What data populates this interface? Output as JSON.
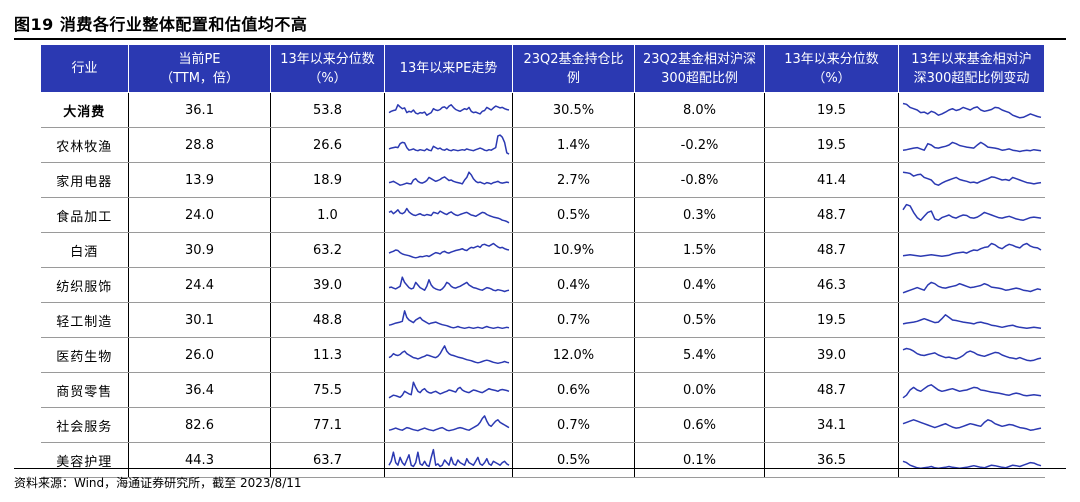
{
  "title": "图19 消费各行业整体配置和估值均不高",
  "source": "资料来源：Wind，海通证券研究所，截至 2023/8/11",
  "headers": {
    "industry": "行业",
    "pe_line1": "当前PE",
    "pe_line2": "（TTM，倍）",
    "pe_pct_line1": "13年以来分位数",
    "pe_pct_line2": "（%）",
    "pe_trend": "13年以来PE走势",
    "hold_line1": "23Q2基金持仓比",
    "hold_line2": "例",
    "rel_line1": "23Q2基金相对沪深",
    "rel_line2": "300超配比例",
    "rel_pct_line1": "13年以来分位数",
    "rel_pct_line2": "（%）",
    "rel_trend_line1": "13年以来基金相对沪",
    "rel_trend_line2": "深300超配比例变动"
  },
  "colors": {
    "header_bg": "#2b39b2",
    "sparkline": "#2b39b2"
  },
  "chart_data": {
    "type": "table",
    "columns": [
      "行业",
      "当前PE（TTM，倍）",
      "13年以来分位数（%）",
      "13年以来PE走势",
      "23Q2基金持仓比例",
      "23Q2基金相对沪深300超配比例",
      "13年以来分位数（%）",
      "13年以来基金相对沪深300超配比例变动"
    ],
    "rows": [
      {
        "industry": "大消费",
        "bold": true,
        "pe": "36.1",
        "pe_pct": "53.8",
        "hold": "30.5%",
        "rel": "8.0%",
        "rel_pct": "19.5",
        "pe_trend": [
          40,
          45,
          48,
          50,
          70,
          62,
          55,
          58,
          40,
          45,
          42,
          50,
          38,
          35,
          40,
          38,
          42,
          30,
          35,
          40,
          55,
          50,
          48,
          52,
          60,
          62,
          55,
          65,
          70,
          60,
          52,
          48,
          45,
          50,
          55,
          52,
          60,
          45,
          40,
          42,
          38,
          35,
          45,
          48,
          60,
          55,
          50,
          58,
          65,
          62,
          58,
          60,
          55,
          52,
          50
        ],
        "rel_trend": [
          75,
          72,
          60,
          55,
          50,
          40,
          42,
          35,
          45,
          40,
          30,
          35,
          42,
          50,
          55,
          48,
          52,
          60,
          55,
          50,
          58,
          62,
          50,
          45,
          48,
          52,
          60,
          58,
          50,
          45,
          40,
          30,
          25,
          20,
          22,
          28,
          35,
          30,
          25,
          22
        ]
      },
      {
        "industry": "农林牧渔",
        "pe": "28.8",
        "pe_pct": "26.6",
        "hold": "1.4%",
        "rel": "-0.2%",
        "rel_pct": "19.5",
        "pe_trend": [
          35,
          38,
          40,
          42,
          40,
          55,
          60,
          58,
          40,
          30,
          32,
          35,
          30,
          28,
          32,
          30,
          28,
          35,
          30,
          28,
          45,
          40,
          35,
          38,
          32,
          30,
          35,
          30,
          28,
          32,
          30,
          28,
          30,
          32,
          30,
          35,
          32,
          30,
          28,
          32,
          35,
          38,
          35,
          30,
          28,
          32,
          30,
          35,
          40,
          85,
          88,
          80,
          60,
          20,
          15
        ],
        "rel_trend": [
          30,
          32,
          35,
          38,
          40,
          35,
          30,
          55,
          50,
          40,
          38,
          42,
          45,
          50,
          60,
          55,
          48,
          45,
          42,
          40,
          38,
          50,
          60,
          52,
          42,
          40,
          38,
          35,
          30,
          32,
          35,
          30,
          28,
          25,
          28,
          30,
          28,
          32,
          30,
          28
        ]
      },
      {
        "industry": "家用电器",
        "pe": "13.9",
        "pe_pct": "18.9",
        "hold": "2.7%",
        "rel": "-0.8%",
        "rel_pct": "41.4",
        "pe_trend": [
          40,
          42,
          45,
          40,
          35,
          30,
          32,
          35,
          38,
          36,
          35,
          50,
          55,
          45,
          40,
          38,
          42,
          48,
          60,
          55,
          50,
          45,
          48,
          52,
          58,
          62,
          55,
          48,
          50,
          45,
          42,
          40,
          38,
          35,
          50,
          60,
          80,
          70,
          55,
          45,
          40,
          42,
          38,
          35,
          40,
          38,
          35,
          40,
          42,
          45,
          40,
          38,
          40,
          42,
          40
        ],
        "rel_trend": [
          80,
          78,
          75,
          65,
          70,
          72,
          60,
          55,
          50,
          35,
          30,
          38,
          45,
          50,
          55,
          60,
          52,
          48,
          45,
          40,
          42,
          38,
          45,
          50,
          55,
          62,
          60,
          55,
          50,
          52,
          48,
          60,
          55,
          50,
          45,
          40,
          38,
          35,
          38,
          40
        ]
      },
      {
        "industry": "食品加工",
        "pe": "24.0",
        "pe_pct": "1.0",
        "hold": "0.5%",
        "rel": "0.3%",
        "rel_pct": "48.7",
        "pe_trend": [
          60,
          65,
          55,
          62,
          70,
          58,
          55,
          60,
          75,
          62,
          55,
          50,
          48,
          52,
          55,
          50,
          48,
          52,
          50,
          48,
          60,
          58,
          55,
          65,
          60,
          55,
          52,
          58,
          62,
          55,
          50,
          48,
          52,
          55,
          58,
          60,
          55,
          50,
          48,
          45,
          50,
          55,
          60,
          58,
          52,
          48,
          45,
          42,
          40,
          38,
          35,
          30,
          28,
          25,
          20
        ],
        "rel_trend": [
          70,
          90,
          85,
          60,
          40,
          30,
          45,
          60,
          65,
          35,
          30,
          40,
          45,
          50,
          42,
          38,
          45,
          50,
          48,
          40,
          38,
          42,
          50,
          60,
          55,
          50,
          45,
          40,
          38,
          42,
          45,
          40,
          35,
          32,
          30,
          35,
          40,
          42,
          40,
          38
        ]
      },
      {
        "industry": "白酒",
        "pe": "30.9",
        "pe_pct": "63.2",
        "hold": "10.9%",
        "rel": "1.5%",
        "rel_pct": "48.7",
        "pe_trend": [
          38,
          42,
          45,
          50,
          48,
          40,
          35,
          32,
          30,
          28,
          25,
          22,
          20,
          22,
          25,
          24,
          26,
          28,
          25,
          30,
          35,
          40,
          38,
          35,
          42,
          45,
          40,
          38,
          42,
          45,
          48,
          50,
          52,
          55,
          50,
          48,
          55,
          60,
          58,
          62,
          65,
          60,
          70,
          72,
          68,
          65,
          70,
          75,
          68,
          62,
          58,
          60,
          55,
          52,
          50
        ],
        "rel_trend": [
          28,
          30,
          32,
          30,
          28,
          26,
          28,
          30,
          32,
          30,
          28,
          26,
          28,
          30,
          35,
          38,
          40,
          42,
          38,
          45,
          50,
          48,
          55,
          60,
          62,
          75,
          70,
          60,
          55,
          65,
          72,
          68,
          62,
          58,
          70,
          75,
          65,
          60,
          58,
          50
        ]
      },
      {
        "industry": "纺织服饰",
        "pe": "24.4",
        "pe_pct": "39.0",
        "hold": "0.4%",
        "rel": "0.4%",
        "rel_pct": "46.3",
        "pe_trend": [
          40,
          42,
          38,
          35,
          40,
          45,
          80,
          60,
          50,
          40,
          35,
          38,
          60,
          50,
          40,
          35,
          30,
          45,
          70,
          50,
          40,
          35,
          32,
          30,
          35,
          45,
          60,
          55,
          45,
          40,
          38,
          42,
          45,
          50,
          55,
          60,
          50,
          45,
          40,
          38,
          35,
          32,
          30,
          35,
          40,
          38,
          35,
          30,
          28,
          32,
          30,
          28,
          25,
          28,
          30
        ],
        "rel_trend": [
          20,
          25,
          30,
          35,
          40,
          35,
          30,
          50,
          60,
          55,
          45,
          40,
          38,
          42,
          45,
          48,
          55,
          50,
          45,
          40,
          42,
          45,
          48,
          55,
          50,
          42,
          40,
          38,
          35,
          30,
          32,
          35,
          38,
          35,
          30,
          28,
          25,
          30,
          35,
          32
        ]
      },
      {
        "industry": "轻工制造",
        "pe": "30.1",
        "pe_pct": "48.8",
        "hold": "0.7%",
        "rel": "0.5%",
        "rel_pct": "19.5",
        "pe_trend": [
          30,
          32,
          35,
          38,
          40,
          42,
          45,
          85,
          60,
          50,
          45,
          40,
          50,
          55,
          60,
          50,
          45,
          40,
          35,
          38,
          40,
          42,
          38,
          35,
          32,
          30,
          28,
          25,
          22,
          20,
          22,
          25,
          22,
          20,
          18,
          20,
          22,
          20,
          18,
          20,
          22,
          20,
          18,
          22,
          25,
          22,
          20,
          18,
          20,
          22,
          20,
          18,
          20,
          22,
          20
        ],
        "rel_trend": [
          35,
          38,
          40,
          42,
          45,
          50,
          55,
          50,
          45,
          40,
          42,
          55,
          70,
          60,
          50,
          48,
          45,
          42,
          40,
          38,
          35,
          40,
          42,
          38,
          35,
          30,
          28,
          25,
          22,
          25,
          28,
          30,
          25,
          22,
          20,
          18,
          20,
          22,
          20,
          18
        ]
      },
      {
        "industry": "医药生物",
        "pe": "26.0",
        "pe_pct": "11.3",
        "hold": "12.0%",
        "rel": "5.4%",
        "rel_pct": "39.0",
        "pe_trend": [
          40,
          45,
          55,
          50,
          48,
          52,
          60,
          65,
          55,
          50,
          45,
          40,
          38,
          35,
          38,
          42,
          45,
          50,
          48,
          45,
          42,
          40,
          45,
          55,
          70,
          85,
          65,
          55,
          50,
          48,
          45,
          42,
          40,
          38,
          35,
          32,
          30,
          28,
          25,
          22,
          20,
          22,
          25,
          28,
          30,
          28,
          25,
          22,
          20,
          18,
          20,
          22,
          25,
          22,
          20
        ],
        "rel_trend": [
          70,
          75,
          72,
          65,
          55,
          50,
          48,
          52,
          55,
          58,
          50,
          45,
          40,
          42,
          38,
          35,
          40,
          48,
          60,
          65,
          60,
          52,
          48,
          45,
          50,
          55,
          60,
          58,
          50,
          45,
          40,
          38,
          35,
          40,
          35,
          30,
          28,
          30,
          35,
          38
        ]
      },
      {
        "industry": "商贸零售",
        "pe": "36.4",
        "pe_pct": "75.5",
        "hold": "0.6%",
        "rel": "0.0%",
        "rel_pct": "48.7",
        "pe_trend": [
          20,
          25,
          30,
          28,
          25,
          22,
          30,
          45,
          40,
          35,
          32,
          80,
          60,
          45,
          40,
          50,
          55,
          45,
          40,
          38,
          42,
          45,
          40,
          35,
          38,
          42,
          45,
          50,
          48,
          45,
          42,
          55,
          60,
          50,
          45,
          42,
          40,
          45,
          50,
          48,
          45,
          42,
          40,
          45,
          50,
          55,
          52,
          50,
          48,
          45,
          50,
          52,
          50,
          48,
          45
        ],
        "rel_trend": [
          20,
          30,
          50,
          60,
          50,
          45,
          55,
          65,
          70,
          60,
          50,
          45,
          48,
          52,
          55,
          50,
          45,
          48,
          50,
          55,
          60,
          58,
          50,
          48,
          45,
          42,
          40,
          38,
          35,
          32,
          30,
          35,
          38,
          35,
          30,
          28,
          30,
          32,
          30,
          28
        ]
      },
      {
        "industry": "社会服务",
        "pe": "82.6",
        "pe_pct": "77.1",
        "hold": "0.7%",
        "rel": "0.6%",
        "rel_pct": "34.1",
        "pe_trend": [
          30,
          32,
          35,
          38,
          35,
          32,
          30,
          35,
          40,
          38,
          35,
          32,
          30,
          28,
          32,
          35,
          38,
          35,
          32,
          30,
          28,
          32,
          35,
          38,
          40,
          35,
          30,
          28,
          30,
          32,
          35,
          38,
          40,
          38,
          35,
          32,
          30,
          35,
          40,
          45,
          50,
          60,
          75,
          85,
          65,
          50,
          45,
          55,
          65,
          70,
          60,
          55,
          50,
          45,
          40
        ],
        "rel_trend": [
          55,
          60,
          65,
          70,
          65,
          60,
          55,
          50,
          45,
          40,
          45,
          50,
          55,
          48,
          42,
          38,
          40,
          45,
          50,
          55,
          52,
          48,
          45,
          60,
          70,
          65,
          55,
          50,
          45,
          48,
          52,
          50,
          45,
          40,
          38,
          35,
          30,
          32,
          35,
          38
        ]
      },
      {
        "industry": "美容护理",
        "pe": "44.3",
        "pe_pct": "63.7",
        "hold": "0.5%",
        "rel": "0.1%",
        "rel_pct": "36.5",
        "pe_trend": [
          30,
          45,
          80,
          40,
          30,
          60,
          40,
          30,
          50,
          70,
          30,
          25,
          40,
          80,
          35,
          30,
          45,
          30,
          25,
          60,
          90,
          30,
          35,
          25,
          30,
          50,
          40,
          30,
          60,
          35,
          30,
          50,
          40,
          35,
          30,
          55,
          40,
          35,
          30,
          45,
          60,
          35,
          30,
          40,
          55,
          35,
          30,
          45,
          40,
          35,
          30,
          40,
          45,
          35,
          30
        ],
        "rel_trend": [
          45,
          40,
          30,
          25,
          20,
          18,
          20,
          22,
          25,
          20,
          18,
          20,
          22,
          25,
          22,
          20,
          18,
          20,
          22,
          25,
          28,
          25,
          22,
          20,
          25,
          30,
          28,
          25,
          22,
          20,
          25,
          30,
          28,
          25,
          30,
          35,
          40,
          38,
          32,
          28
        ]
      }
    ]
  }
}
